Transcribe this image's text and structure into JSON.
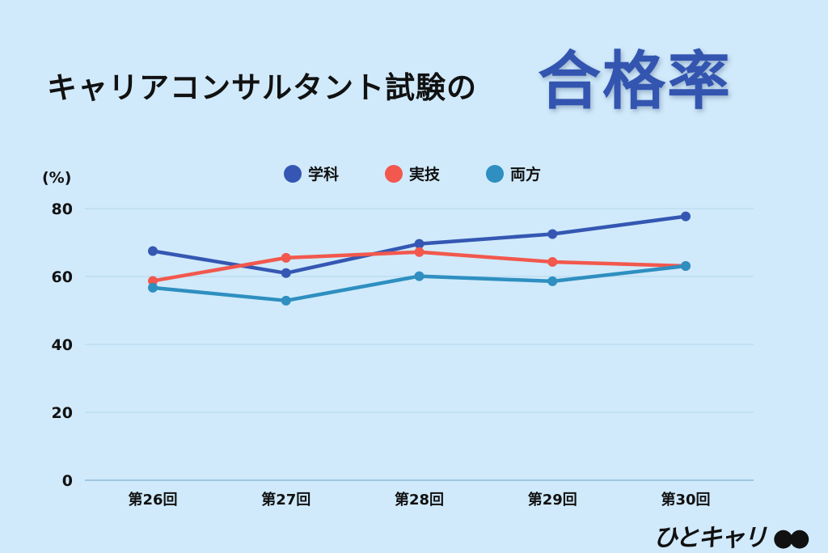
{
  "header": {
    "title": "キャリアコンサルタント試験の",
    "title_highlight": "合格率"
  },
  "logo": {
    "text": "ひとキャリ"
  },
  "chart_data": {
    "type": "line",
    "ylabel": "(%)",
    "categories": [
      "第26回",
      "第27回",
      "第28回",
      "第29回",
      "第30回"
    ],
    "ylim": [
      0,
      80
    ],
    "yticks": [
      0,
      20,
      40,
      60,
      80
    ],
    "grid": true,
    "legend_position": "top",
    "series": [
      {
        "name": "学科",
        "color": "#3557b3",
        "values": [
          67.5,
          61.0,
          69.6,
          72.5,
          77.7
        ]
      },
      {
        "name": "実技",
        "color": "#f2584d",
        "values": [
          58.7,
          65.5,
          67.2,
          64.3,
          63.1
        ]
      },
      {
        "name": "両方",
        "color": "#2e8fc0",
        "values": [
          56.7,
          52.9,
          60.1,
          58.6,
          63.1
        ]
      }
    ]
  }
}
